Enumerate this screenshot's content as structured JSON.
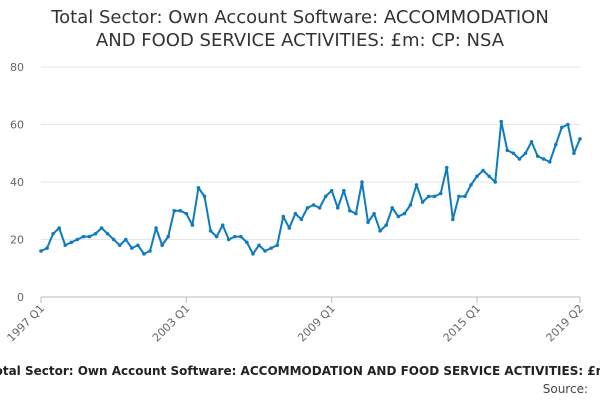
{
  "chart_data": {
    "type": "line",
    "title_lines": [
      "Total Sector: Own Account Software: ACCOMMODATION",
      "AND FOOD SERVICE ACTIVITIES: £m: CP: NSA"
    ],
    "ylim": [
      0,
      80
    ],
    "yticks": [
      0,
      20,
      40,
      60,
      80
    ],
    "xtick_labels": [
      "1997 Q1",
      "2003 Q1",
      "2009 Q1",
      "2015 Q1",
      "2019 Q2"
    ],
    "xtick_positions": [
      "1997 Q1",
      "2003 Q1",
      "2009 Q1",
      "2015 Q1",
      "2019 Q2"
    ],
    "grid": true,
    "color": "#0e7bbd",
    "series": [
      {
        "x": [
          "1997 Q1",
          "1997 Q2",
          "1997 Q3",
          "1997 Q4",
          "1998 Q1",
          "1998 Q2",
          "1998 Q3",
          "1998 Q4",
          "1999 Q1",
          "1999 Q2",
          "1999 Q3",
          "1999 Q4",
          "2000 Q1",
          "2000 Q2",
          "2000 Q3",
          "2000 Q4",
          "2001 Q1",
          "2001 Q2",
          "2001 Q3",
          "2001 Q4",
          "2002 Q1",
          "2002 Q2",
          "2002 Q3",
          "2002 Q4",
          "2003 Q1",
          "2003 Q2",
          "2003 Q3",
          "2003 Q4",
          "2004 Q1",
          "2004 Q2",
          "2004 Q3",
          "2004 Q4",
          "2005 Q1",
          "2005 Q2",
          "2005 Q3",
          "2005 Q4",
          "2006 Q1",
          "2006 Q2",
          "2006 Q3",
          "2006 Q4",
          "2007 Q1",
          "2007 Q2",
          "2007 Q3",
          "2007 Q4",
          "2008 Q1",
          "2008 Q2",
          "2008 Q3",
          "2008 Q4",
          "2009 Q1",
          "2009 Q2",
          "2009 Q3",
          "2009 Q4",
          "2010 Q1",
          "2010 Q2",
          "2010 Q3",
          "2010 Q4",
          "2011 Q1",
          "2011 Q2",
          "2011 Q3",
          "2011 Q4",
          "2012 Q1",
          "2012 Q2",
          "2012 Q3",
          "2012 Q4",
          "2013 Q1",
          "2013 Q2",
          "2013 Q3",
          "2013 Q4",
          "2014 Q1",
          "2014 Q2",
          "2014 Q3",
          "2014 Q4",
          "2015 Q1",
          "2015 Q2",
          "2015 Q3",
          "2015 Q4",
          "2016 Q1",
          "2016 Q2",
          "2016 Q3",
          "2016 Q4",
          "2017 Q1",
          "2017 Q2",
          "2017 Q3",
          "2017 Q4",
          "2018 Q1",
          "2018 Q2",
          "2018 Q3",
          "2018 Q4",
          "2019 Q1",
          "2019 Q2"
        ],
        "values": [
          16,
          17,
          22,
          24,
          18,
          19,
          20,
          21,
          21,
          22,
          24,
          22,
          20,
          18,
          20,
          17,
          18,
          15,
          16,
          24,
          18,
          21,
          30,
          30,
          29,
          25,
          38,
          35,
          23,
          21,
          25,
          20,
          21,
          21,
          19,
          15,
          18,
          16,
          17,
          18,
          28,
          24,
          29,
          27,
          31,
          32,
          31,
          35,
          37,
          31,
          37,
          30,
          29,
          40,
          26,
          29,
          23,
          25,
          31,
          28,
          29,
          32,
          39,
          33,
          35,
          35,
          36,
          45,
          27,
          35,
          35,
          39,
          42,
          44,
          42,
          40,
          61,
          51,
          50,
          48,
          50,
          54,
          49,
          48,
          47,
          53,
          59,
          60,
          50,
          55
        ]
      }
    ]
  },
  "footer": {
    "chart_title": "Total Sector: Own Account Software: ACCOMMODATION AND FOOD SERVICE ACTIVITIES: £m: CP: NSA",
    "source_label": "Source:"
  }
}
